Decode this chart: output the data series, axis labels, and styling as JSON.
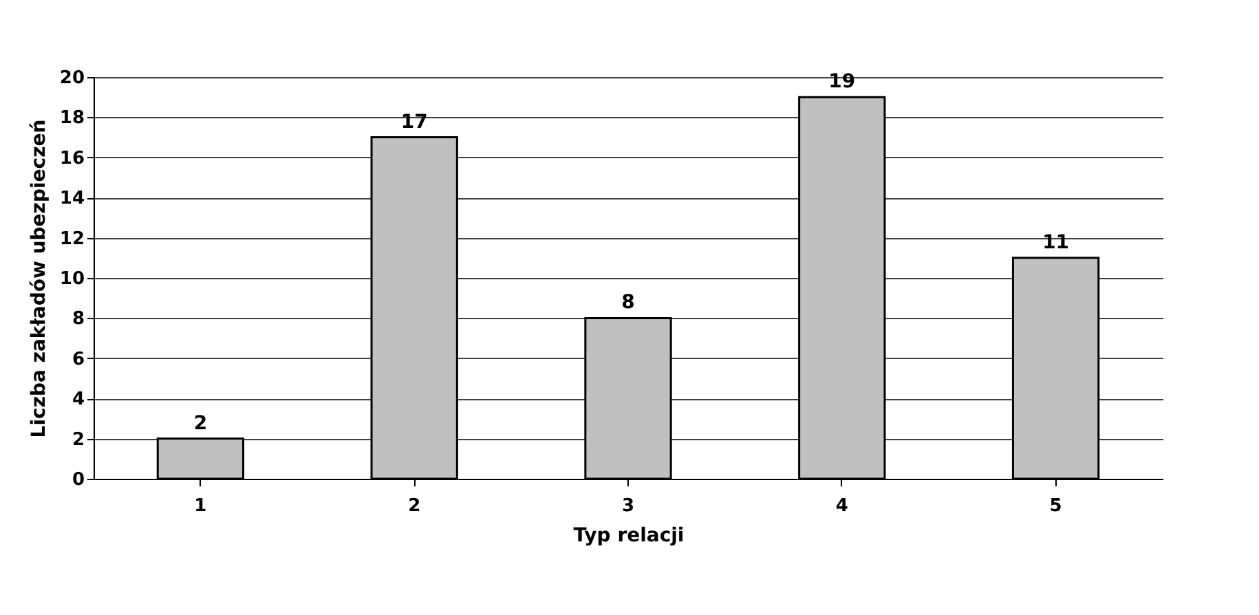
{
  "chart_data": {
    "type": "bar",
    "xlabel": "Typ relacji",
    "ylabel": "Liczba zakładów ubezpieczeń",
    "categories": [
      "1",
      "2",
      "3",
      "4",
      "5"
    ],
    "values": [
      2,
      17,
      8,
      19,
      11
    ],
    "color": "#c0c0c0",
    "ylim": [
      0,
      20
    ],
    "yticks": [
      0,
      2,
      4,
      6,
      8,
      10,
      12,
      14,
      16,
      18,
      20
    ],
    "grid": "y",
    "data_labels": true
  }
}
